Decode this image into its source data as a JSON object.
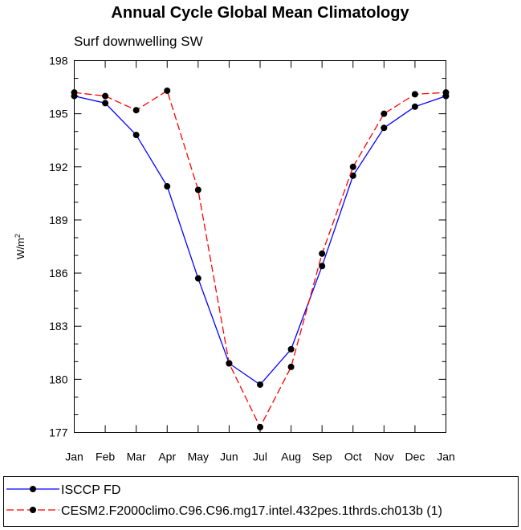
{
  "chart_data": {
    "type": "line",
    "title": "Annual Cycle Global Mean Climatology",
    "subtitle": "Surf downwelling SW",
    "xlabel": "",
    "ylabel": "W/m",
    "ylabel_superscript": "2",
    "categories": [
      "Jan",
      "Feb",
      "Mar",
      "Apr",
      "May",
      "Jun",
      "Jul",
      "Aug",
      "Sep",
      "Oct",
      "Nov",
      "Dec",
      "Jan"
    ],
    "ylim": [
      177,
      198
    ],
    "yticks": [
      177,
      180,
      183,
      186,
      189,
      192,
      195,
      198
    ],
    "ytick_labels": [
      "177",
      "180",
      "183",
      "186",
      "189",
      "192",
      "195",
      "198"
    ],
    "grid": false,
    "legend_position": "bottom",
    "series": [
      {
        "name": "ISCCP FD",
        "color": "#0000ff",
        "style": "solid",
        "values": [
          196.0,
          195.6,
          193.8,
          190.9,
          185.7,
          180.9,
          179.7,
          181.7,
          186.4,
          191.5,
          194.2,
          195.4,
          196.0
        ]
      },
      {
        "name": "CESM2.F2000climo.C96.C96.mg17.intel.432pes.1thrds.ch013b (1)",
        "color": "#ff0000",
        "style": "dashed",
        "values": [
          196.2,
          196.0,
          195.2,
          196.3,
          190.7,
          180.9,
          177.3,
          180.7,
          187.1,
          192.0,
          195.0,
          196.1,
          196.2
        ]
      }
    ]
  }
}
